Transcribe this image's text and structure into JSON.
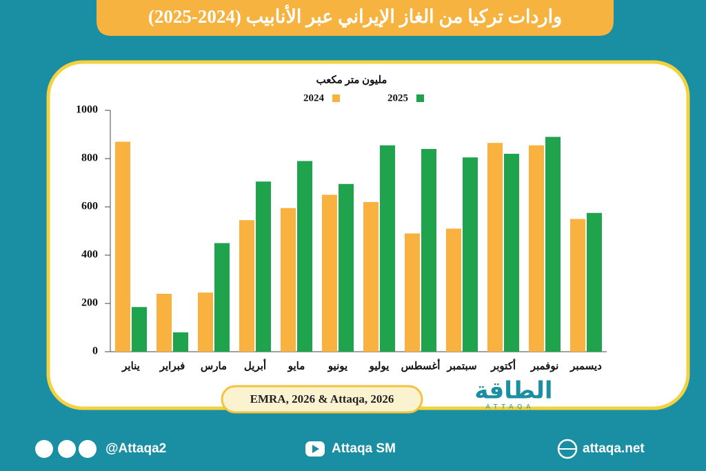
{
  "chart_data": {
    "type": "bar",
    "title": "واردات تركيا من الغاز الإيراني عبر الأنابيب (2024-2025)",
    "y_label": "مليون متر مكعب",
    "categories": [
      "يناير",
      "فبراير",
      "مارس",
      "أبريل",
      "مايو",
      "يونيو",
      "يوليو",
      "أغسطس",
      "سبتمبر",
      "أكتوبر",
      "نوفمبر",
      "ديسمبر"
    ],
    "series": [
      {
        "name": "2024",
        "color": "#f9b23f",
        "values": [
          870,
          240,
          245,
          545,
          595,
          650,
          620,
          490,
          510,
          865,
          855,
          550
        ]
      },
      {
        "name": "2025",
        "color": "#1fa34d",
        "values": [
          185,
          80,
          450,
          705,
          790,
          695,
          855,
          840,
          805,
          820,
          890,
          575
        ]
      }
    ],
    "ylim": [
      0,
      1000
    ],
    "yticks": [
      0,
      200,
      400,
      600,
      800,
      1000
    ],
    "grid": false,
    "source": "EMRA, 2026 & Attaqa, 2026"
  },
  "logo": {
    "name": "الطاقة",
    "latin": "ATTAQA"
  },
  "footer": {
    "social": "@Attaqa2",
    "youtube": "Attaqa SM",
    "website": "attaqa.net"
  }
}
